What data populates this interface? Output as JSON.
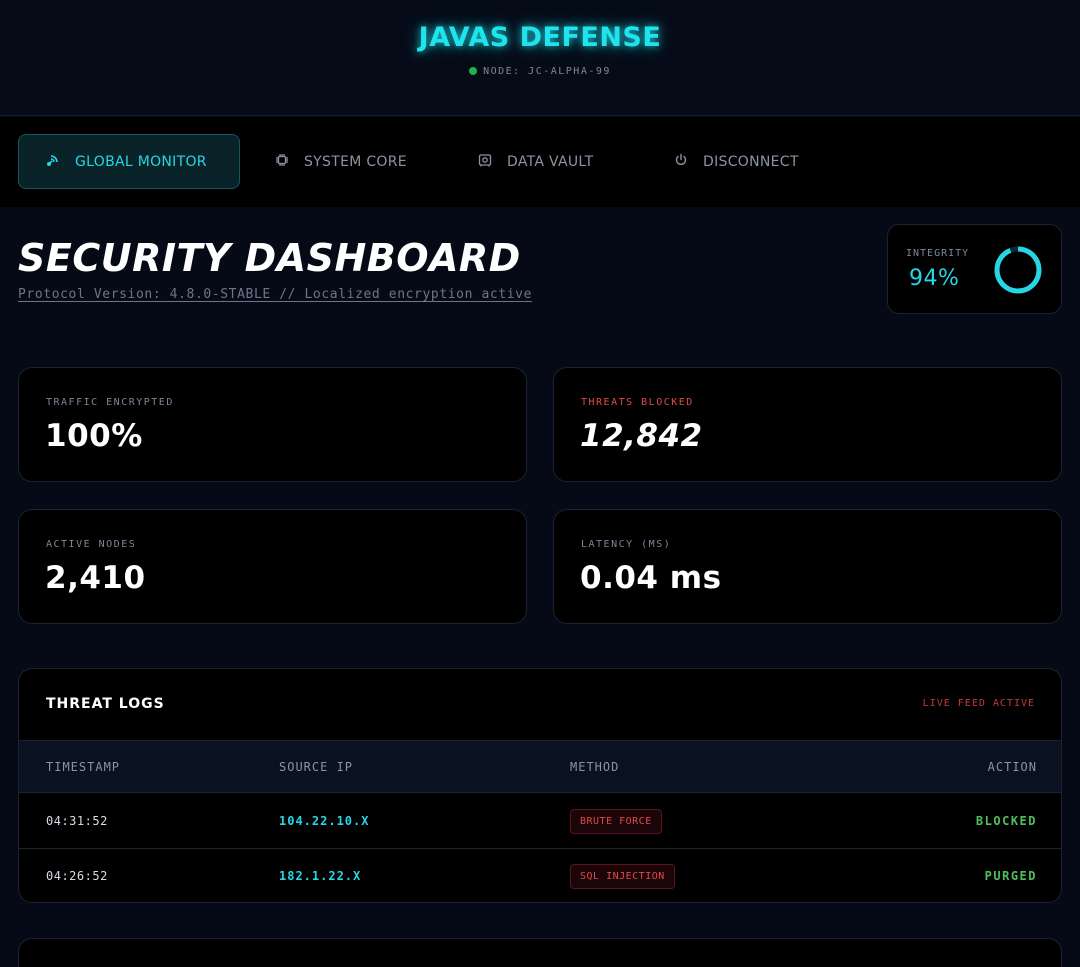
{
  "header": {
    "brand": "JAVAS DEFENSE",
    "node_label": "NODE: JC-ALPHA-99",
    "node_status_color": "#22b14c"
  },
  "nav": {
    "items": [
      {
        "label": "GLOBAL MONITOR",
        "icon": "satellite-icon",
        "active": true
      },
      {
        "label": "SYSTEM CORE",
        "icon": "chip-icon",
        "active": false
      },
      {
        "label": "DATA VAULT",
        "icon": "vault-icon",
        "active": false
      },
      {
        "label": "DISCONNECT",
        "icon": "power-icon",
        "active": false
      }
    ]
  },
  "main": {
    "title": "SECURITY DASHBOARD",
    "subtitle": "Protocol Version: 4.8.0-STABLE // Localized encryption active"
  },
  "integrity": {
    "label": "INTEGRITY",
    "value": "94%",
    "fraction": 0.94,
    "color": "#27d6e4"
  },
  "stats": [
    {
      "label": "TRAFFIC ENCRYPTED",
      "value": "100%"
    },
    {
      "label": "THREATS BLOCKED",
      "value": "12,842"
    },
    {
      "label": "ACTIVE NODES",
      "value": "2,410"
    },
    {
      "label": "LATENCY (MS)",
      "value": "0.04 ms"
    }
  ],
  "logs": {
    "title": "THREAT LOGS",
    "status": "LIVE FEED ACTIVE",
    "columns": [
      "TIMESTAMP",
      "SOURCE IP",
      "METHOD",
      "ACTION"
    ],
    "rows": [
      {
        "timestamp": "04:31:52",
        "source_ip": "104.22.10.X",
        "method": "BRUTE FORCE",
        "action": "BLOCKED"
      },
      {
        "timestamp": "04:26:52",
        "source_ip": "182.1.22.X",
        "method": "SQL INJECTION",
        "action": "PURGED"
      }
    ]
  },
  "colors": {
    "accent": "#1fe4ee",
    "danger": "#e24a4a",
    "success": "#4fbf5a",
    "background": "#050a16"
  }
}
